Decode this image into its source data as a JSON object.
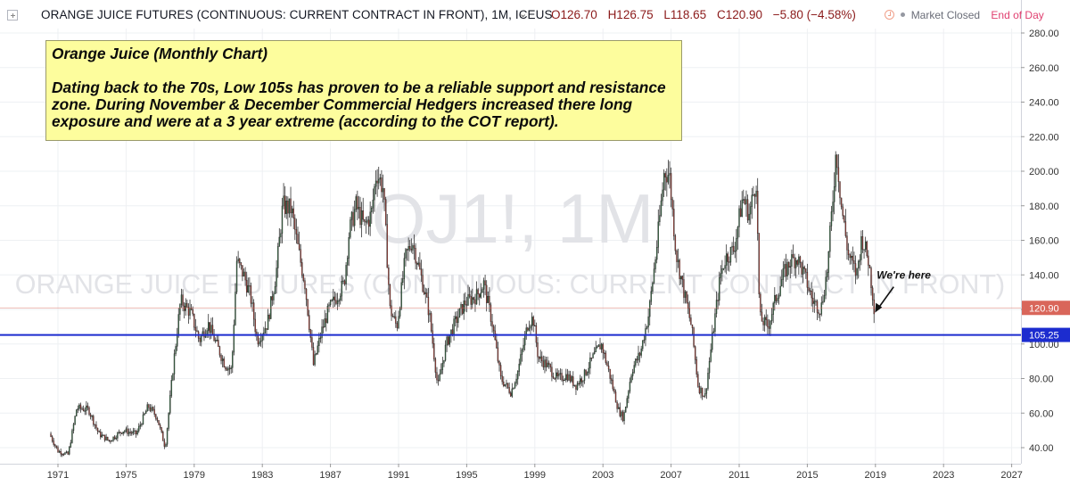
{
  "header": {
    "symbol": "ORANGE JUICE FUTURES (CONTINUOUS: CURRENT CONTRACT IN FRONT), 1M, ICEUS",
    "chevron_icon": "chevron-down-icon",
    "ohlc": {
      "open": "O126.70",
      "high": "H126.75",
      "low": "L118.65",
      "close": "C120.90",
      "change": "−5.80 (−4.58%)"
    },
    "status": {
      "clock_icon": "clock-icon",
      "market_status": "Market Closed",
      "session": "End of Day"
    }
  },
  "watermark": {
    "ticker": "OJ1!, 1M",
    "name": "ORANGE JUICE FUTURES (CONTINUOUS: CURRENT CONTRACT IN FRONT)"
  },
  "annotation": {
    "title": "Orange Juice (Monthly Chart)",
    "body": "Dating back to the 70s, Low 105s has proven to be a reliable support and resistance zone. During November & December Commercial Hedgers increased there long exposure and were at a 3 year extreme (according to the COT report)."
  },
  "chart_data": {
    "type": "candlestick",
    "title": "",
    "xlabel": "",
    "ylabel": "",
    "ylim": [
      32,
      290
    ],
    "xlim": [
      1969.0,
      2028.0
    ],
    "y_ticks": [
      "40.00",
      "60.00",
      "80.00",
      "100.00",
      "120.00",
      "140.00",
      "160.00",
      "180.00",
      "200.00",
      "220.00",
      "240.00",
      "260.00",
      "280.00"
    ],
    "x_ticks": [
      "1971",
      "1975",
      "1979",
      "1983",
      "1987",
      "1991",
      "1995",
      "1999",
      "2003",
      "2007",
      "2011",
      "2015",
      "2019",
      "2023",
      "2027"
    ],
    "colors": {
      "up": "#3d7a4d",
      "down": "#b8463c",
      "wick": "#333333",
      "support_line": "#1c2ccf",
      "last_price": "#d9665a"
    },
    "support": {
      "value": 105.25,
      "label": "105.25"
    },
    "last_price": {
      "value": 120.9,
      "label": "120.90"
    },
    "callout": {
      "text": "We're here",
      "year": 2018.92,
      "value": 118.65
    },
    "series_anchors": [
      [
        1970.5,
        48
      ],
      [
        1971.0,
        38
      ],
      [
        1971.6,
        36
      ],
      [
        1972.1,
        63
      ],
      [
        1972.8,
        62
      ],
      [
        1973.4,
        48
      ],
      [
        1974.0,
        44
      ],
      [
        1974.8,
        50
      ],
      [
        1975.6,
        48
      ],
      [
        1976.3,
        64
      ],
      [
        1976.8,
        58
      ],
      [
        1977.3,
        40
      ],
      [
        1977.8,
        90
      ],
      [
        1978.2,
        125
      ],
      [
        1978.8,
        118
      ],
      [
        1979.3,
        102
      ],
      [
        1979.8,
        112
      ],
      [
        1980.3,
        100
      ],
      [
        1980.8,
        88
      ],
      [
        1981.2,
        85
      ],
      [
        1981.5,
        148
      ],
      [
        1981.9,
        140
      ],
      [
        1982.3,
        128
      ],
      [
        1982.7,
        102
      ],
      [
        1983.3,
        112
      ],
      [
        1983.8,
        140
      ],
      [
        1984.2,
        180
      ],
      [
        1984.7,
        178
      ],
      [
        1985.1,
        155
      ],
      [
        1985.5,
        135
      ],
      [
        1986.0,
        88
      ],
      [
        1986.5,
        108
      ],
      [
        1986.9,
        120
      ],
      [
        1987.4,
        128
      ],
      [
        1987.8,
        135
      ],
      [
        1988.1,
        165
      ],
      [
        1988.5,
        180
      ],
      [
        1989.0,
        168
      ],
      [
        1989.4,
        175
      ],
      [
        1989.7,
        200
      ],
      [
        1990.1,
        190
      ],
      [
        1990.5,
        120
      ],
      [
        1990.9,
        110
      ],
      [
        1991.4,
        150
      ],
      [
        1991.8,
        160
      ],
      [
        1992.3,
        140
      ],
      [
        1992.8,
        118
      ],
      [
        1993.3,
        75
      ],
      [
        1993.8,
        100
      ],
      [
        1994.3,
        112
      ],
      [
        1994.9,
        124
      ],
      [
        1995.6,
        128
      ],
      [
        1996.0,
        135
      ],
      [
        1996.5,
        112
      ],
      [
        1997.0,
        80
      ],
      [
        1997.6,
        72
      ],
      [
        1998.0,
        84
      ],
      [
        1998.6,
        112
      ],
      [
        1998.9,
        115
      ],
      [
        1999.2,
        92
      ],
      [
        1999.7,
        88
      ],
      [
        2000.3,
        80
      ],
      [
        2000.9,
        82
      ],
      [
        2001.4,
        76
      ],
      [
        2001.9,
        82
      ],
      [
        2002.4,
        92
      ],
      [
        2002.9,
        100
      ],
      [
        2003.4,
        82
      ],
      [
        2003.9,
        62
      ],
      [
        2004.2,
        57
      ],
      [
        2004.7,
        85
      ],
      [
        2005.2,
        95
      ],
      [
        2005.7,
        118
      ],
      [
        2006.2,
        160
      ],
      [
        2006.6,
        200
      ],
      [
        2006.9,
        198
      ],
      [
        2007.3,
        152
      ],
      [
        2007.8,
        128
      ],
      [
        2008.2,
        110
      ],
      [
        2008.6,
        75
      ],
      [
        2009.0,
        70
      ],
      [
        2009.4,
        102
      ],
      [
        2009.9,
        140
      ],
      [
        2010.2,
        150
      ],
      [
        2010.7,
        155
      ],
      [
        2011.2,
        185
      ],
      [
        2011.6,
        175
      ],
      [
        2012.0,
        195
      ],
      [
        2012.2,
        115
      ],
      [
        2012.7,
        110
      ],
      [
        2013.1,
        125
      ],
      [
        2013.6,
        140
      ],
      [
        2014.0,
        148
      ],
      [
        2014.4,
        150
      ],
      [
        2014.9,
        138
      ],
      [
        2015.3,
        125
      ],
      [
        2015.8,
        120
      ],
      [
        2016.2,
        145
      ],
      [
        2016.5,
        185
      ],
      [
        2016.7,
        213
      ],
      [
        2017.0,
        180
      ],
      [
        2017.4,
        152
      ],
      [
        2017.9,
        140
      ],
      [
        2018.2,
        162
      ],
      [
        2018.6,
        148
      ],
      [
        2018.8,
        132
      ],
      [
        2018.92,
        121
      ]
    ]
  }
}
